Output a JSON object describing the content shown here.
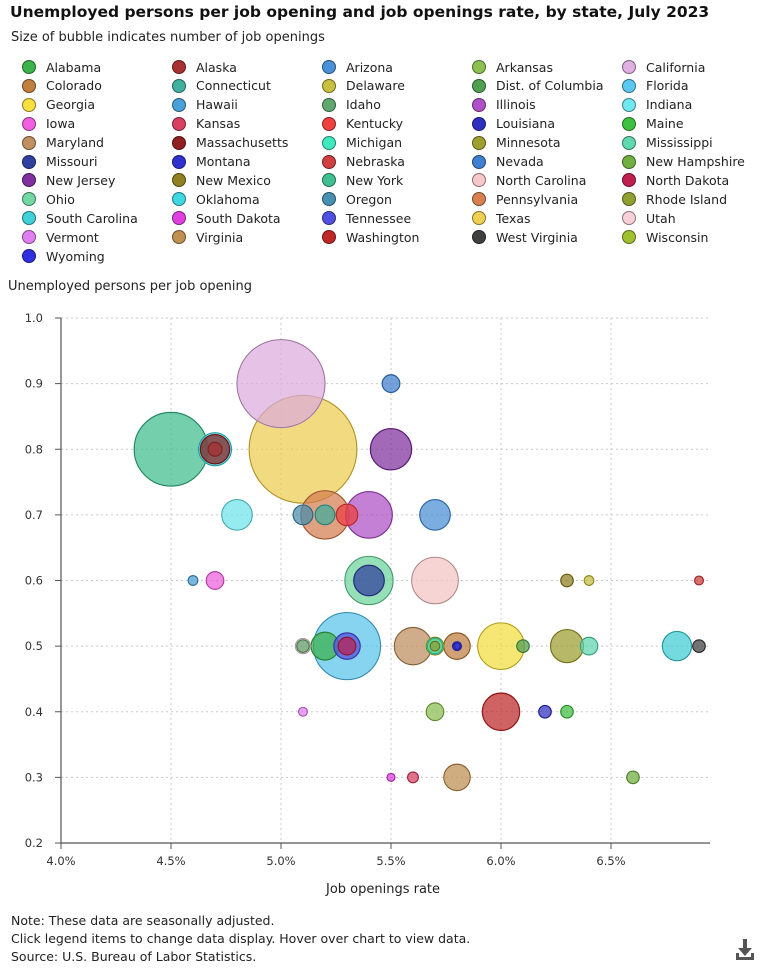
{
  "chart_data": {
    "type": "scatter",
    "title": "Unemployed persons per job opening and job openings rate, by state, July 2023",
    "subtitle": "Size of bubble indicates number of job openings",
    "xlabel": "Job openings rate",
    "ylabel": "Unemployed persons per job opening",
    "xlim": [
      4.0,
      6.95
    ],
    "ylim": [
      0.2,
      1.0
    ],
    "xticks": [
      4.0,
      4.5,
      5.0,
      5.5,
      6.0,
      6.5
    ],
    "xtick_labels": [
      "4.0%",
      "4.5%",
      "5.0%",
      "5.5%",
      "6.0%",
      "6.5%"
    ],
    "yticks": [
      0.2,
      0.3,
      0.4,
      0.5,
      0.6,
      0.7,
      0.8,
      0.9,
      1.0
    ],
    "ytick_labels": [
      "0.2",
      "0.3",
      "0.4",
      "0.5",
      "0.6",
      "0.7",
      "0.8",
      "0.9",
      "1.0"
    ],
    "grid": true,
    "legend_position": "top",
    "series": [
      {
        "name": "Alabama",
        "x": 5.2,
        "y": 0.5,
        "size": 10,
        "color": "#3cb44b"
      },
      {
        "name": "Alaska",
        "x": 4.7,
        "y": 0.8,
        "size": 2.5,
        "color": "#a83232"
      },
      {
        "name": "Arizona",
        "x": 5.7,
        "y": 0.7,
        "size": 12,
        "color": "#4a90d9"
      },
      {
        "name": "Arkansas",
        "x": 5.7,
        "y": 0.4,
        "size": 4,
        "color": "#8cc152"
      },
      {
        "name": "California",
        "x": 5.0,
        "y": 0.9,
        "size": 100,
        "color": "#e0b0e0"
      },
      {
        "name": "Colorado",
        "x": 5.8,
        "y": 0.5,
        "size": 9,
        "color": "#c08040"
      },
      {
        "name": "Connecticut",
        "x": 5.2,
        "y": 0.7,
        "size": 5,
        "color": "#40b0a0"
      },
      {
        "name": "Delaware",
        "x": 6.4,
        "y": 0.6,
        "size": 1.2,
        "color": "#c8c040"
      },
      {
        "name": "Dist. of Columbia",
        "x": 6.1,
        "y": 0.5,
        "size": 2,
        "color": "#50a050"
      },
      {
        "name": "Florida",
        "x": 5.3,
        "y": 0.5,
        "size": 58,
        "color": "#5ac8f0"
      },
      {
        "name": "Georgia",
        "x": 6.0,
        "y": 0.5,
        "size": 28,
        "color": "#f8e040"
      },
      {
        "name": "Hawaii",
        "x": 4.6,
        "y": 0.6,
        "size": 1.2,
        "color": "#4aa0d8"
      },
      {
        "name": "Idaho",
        "x": 5.1,
        "y": 0.5,
        "size": 2,
        "color": "#60a870"
      },
      {
        "name": "Illinois",
        "x": 5.4,
        "y": 0.7,
        "size": 28,
        "color": "#b050c8"
      },
      {
        "name": "Indiana",
        "x": 4.8,
        "y": 0.7,
        "size": 12,
        "color": "#70e8f0"
      },
      {
        "name": "Iowa",
        "x": 4.7,
        "y": 0.6,
        "size": 4,
        "color": "#f060e0"
      },
      {
        "name": "Kansas",
        "x": 5.6,
        "y": 0.3,
        "size": 1.5,
        "color": "#d84060"
      },
      {
        "name": "Kentucky",
        "x": 5.3,
        "y": 0.7,
        "size": 6,
        "color": "#f04040"
      },
      {
        "name": "Louisiana",
        "x": 6.2,
        "y": 0.4,
        "size": 2,
        "color": "#3030c0"
      },
      {
        "name": "Maine",
        "x": 6.3,
        "y": 0.4,
        "size": 2,
        "color": "#40c040"
      },
      {
        "name": "Maryland",
        "x": 5.6,
        "y": 0.5,
        "size": 18,
        "color": "#c09060"
      },
      {
        "name": "Massachusetts",
        "x": 4.7,
        "y": 0.8,
        "size": 11,
        "color": "#902020"
      },
      {
        "name": "Michigan",
        "x": 5.7,
        "y": 0.5,
        "size": 3,
        "color": "#40e8c0"
      },
      {
        "name": "Minnesota",
        "x": 6.3,
        "y": 0.5,
        "size": 14,
        "color": "#a0a030"
      },
      {
        "name": "Mississippi",
        "x": 6.4,
        "y": 0.5,
        "size": 4,
        "color": "#60d8b0"
      },
      {
        "name": "Missouri",
        "x": 5.4,
        "y": 0.6,
        "size": 12,
        "color": "#3040a0"
      },
      {
        "name": "Montana",
        "x": 5.8,
        "y": 0.5,
        "size": 1,
        "color": "#3030d0"
      },
      {
        "name": "Nebraska",
        "x": 6.9,
        "y": 0.6,
        "size": 1,
        "color": "#d04040"
      },
      {
        "name": "Nevada",
        "x": 5.5,
        "y": 0.9,
        "size": 4,
        "color": "#4080d0"
      },
      {
        "name": "New Hampshire",
        "x": 6.6,
        "y": 0.3,
        "size": 2,
        "color": "#70b040"
      },
      {
        "name": "New Jersey",
        "x": 5.5,
        "y": 0.8,
        "size": 22,
        "color": "#8030a0"
      },
      {
        "name": "New Mexico",
        "x": 6.3,
        "y": 0.6,
        "size": 2,
        "color": "#908020"
      },
      {
        "name": "New York",
        "x": 4.5,
        "y": 0.8,
        "size": 70,
        "color": "#40c090"
      },
      {
        "name": "North Carolina",
        "x": 5.7,
        "y": 0.6,
        "size": 28,
        "color": "#f8c8c8"
      },
      {
        "name": "North Dakota",
        "x": 5.3,
        "y": 0.5,
        "size": 4,
        "color": "#c02050"
      },
      {
        "name": "Ohio",
        "x": 5.4,
        "y": 0.6,
        "size": 30,
        "color": "#70d8a0"
      },
      {
        "name": "Oklahoma",
        "x": 4.7,
        "y": 0.8,
        "size": 14,
        "color": "#40d8e0"
      },
      {
        "name": "Oregon",
        "x": 5.1,
        "y": 0.7,
        "size": 5,
        "color": "#4890b0"
      },
      {
        "name": "Pennsylvania",
        "x": 5.2,
        "y": 0.7,
        "size": 30,
        "color": "#d88050"
      },
      {
        "name": "Rhode Island",
        "x": 5.7,
        "y": 0.5,
        "size": 1.2,
        "color": "#90a030"
      },
      {
        "name": "South Carolina",
        "x": 6.8,
        "y": 0.5,
        "size": 11,
        "color": "#40d0d8"
      },
      {
        "name": "South Dakota",
        "x": 5.5,
        "y": 0.3,
        "size": 0.8,
        "color": "#e040e0"
      },
      {
        "name": "Tennessee",
        "x": 5.3,
        "y": 0.5,
        "size": 9,
        "color": "#5050e0"
      },
      {
        "name": "Texas",
        "x": 5.1,
        "y": 0.8,
        "size": 150,
        "color": "#f0d050"
      },
      {
        "name": "Utah",
        "x": 5.1,
        "y": 0.5,
        "size": 3,
        "color": "#f8d0d8"
      },
      {
        "name": "Vermont",
        "x": 5.1,
        "y": 0.4,
        "size": 1,
        "color": "#e080f0"
      },
      {
        "name": "Virginia",
        "x": 5.8,
        "y": 0.3,
        "size": 9,
        "color": "#c09050"
      },
      {
        "name": "Washington",
        "x": 6.0,
        "y": 0.4,
        "size": 18,
        "color": "#c02828"
      },
      {
        "name": "West Virginia",
        "x": 6.9,
        "y": 0.5,
        "size": 2,
        "color": "#404040"
      },
      {
        "name": "Wisconsin",
        "x": 5.7,
        "y": 0.5,
        "size": 4,
        "color": "#a0c030"
      },
      {
        "name": "Wyoming",
        "x": 5.8,
        "y": 0.5,
        "size": 0.5,
        "color": "#3030e0"
      }
    ]
  },
  "footer": {
    "note1": "Note: These data are seasonally adjusted.",
    "note2": "Click legend items to change data display. Hover over chart to view data.",
    "source": "Source: U.S. Bureau of Labor Statistics."
  },
  "icons": {
    "download": "download-icon"
  }
}
